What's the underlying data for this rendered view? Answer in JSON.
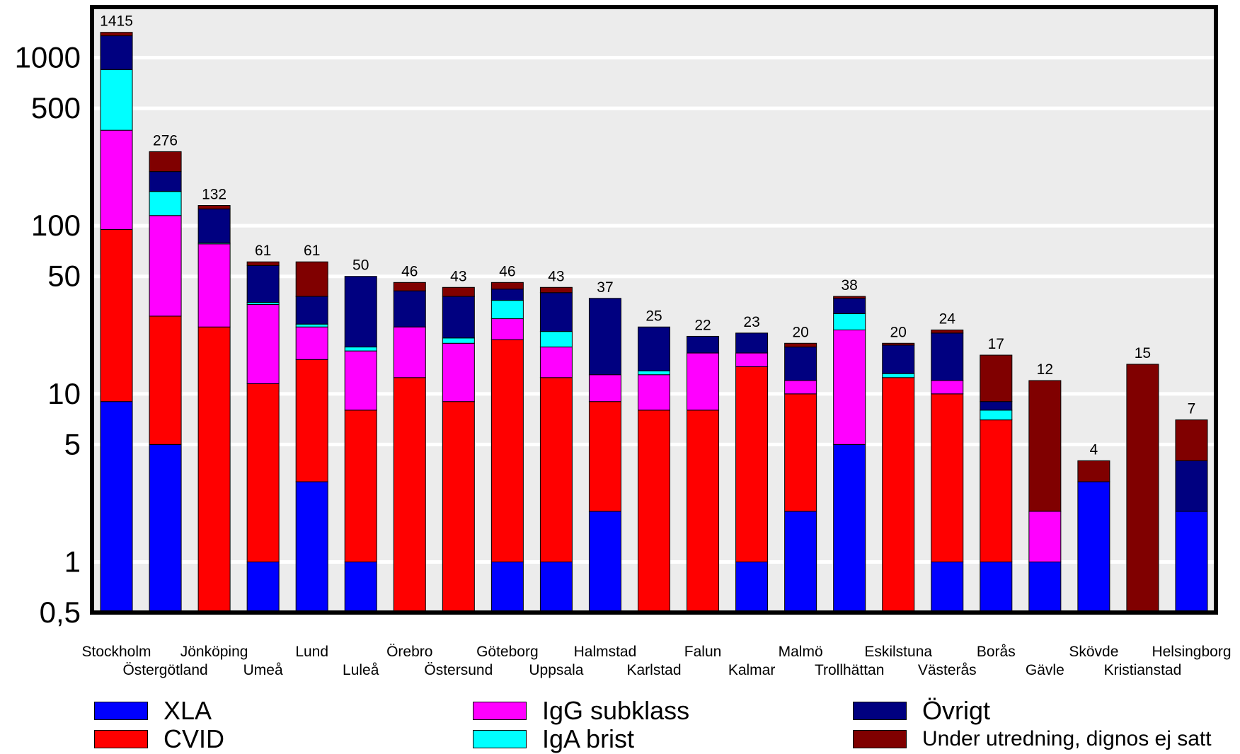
{
  "chart_data": {
    "type": "bar",
    "stacked": true,
    "yscale": "log",
    "ylim": [
      0.5,
      2000
    ],
    "yticks": [
      {
        "value": 0.5,
        "label": "0,5"
      },
      {
        "value": 1,
        "label": "1"
      },
      {
        "value": 5,
        "label": "5"
      },
      {
        "value": 10,
        "label": "10"
      },
      {
        "value": 50,
        "label": "50"
      },
      {
        "value": 100,
        "label": "100"
      },
      {
        "value": 500,
        "label": "500"
      },
      {
        "value": 1000,
        "label": "1000"
      }
    ],
    "gridlines": [
      1,
      5,
      10,
      50,
      100,
      500,
      1000
    ],
    "plot_background": "#ececec",
    "categories": [
      "Stockholm",
      "Östergötland",
      "Jönköping",
      "Umeå",
      "Lund",
      "Luleå",
      "Örebro",
      "Östersund",
      "Göteborg",
      "Uppsala",
      "Halmstad",
      "Karlstad",
      "Falun",
      "Kalmar",
      "Malmö",
      "Trollhättan",
      "Eskilstuna",
      "Västerås",
      "Borås",
      "Gävle",
      "Skövde",
      "Kristianstad",
      "Helsingborg"
    ],
    "totals": [
      "1415",
      "276",
      "132",
      "61",
      "61",
      "50",
      "46",
      "43",
      "46",
      "43",
      "37",
      "25",
      "22",
      "23",
      "20",
      "38",
      "20",
      "24",
      "17",
      "12",
      "4",
      "15",
      "7"
    ],
    "cumulative_tops": [
      [
        9,
        95,
        370,
        850,
        1350,
        1415
      ],
      [
        5,
        29,
        115,
        160,
        210,
        276
      ],
      [
        0.5,
        25,
        78,
        79,
        126,
        132
      ],
      [
        1,
        11.5,
        34,
        35,
        58,
        61
      ],
      [
        3,
        16,
        25,
        26,
        38,
        61
      ],
      [
        1,
        8,
        18,
        19,
        50,
        50
      ],
      [
        0.5,
        12.5,
        25,
        25,
        41,
        46
      ],
      [
        0.5,
        9,
        20,
        21.5,
        38,
        43
      ],
      [
        1,
        21,
        28,
        36,
        42,
        46
      ],
      [
        1,
        12.5,
        19,
        23.5,
        40,
        43
      ],
      [
        2,
        9,
        13,
        13,
        37,
        37
      ],
      [
        0.5,
        8,
        13,
        13.7,
        25,
        25
      ],
      [
        0.5,
        8,
        17.5,
        17.5,
        22,
        22
      ],
      [
        1,
        14.5,
        17.5,
        17.5,
        23,
        23
      ],
      [
        2,
        10,
        12,
        12,
        19,
        20
      ],
      [
        5,
        5,
        24,
        30,
        37,
        38
      ],
      [
        0.5,
        12.5,
        12.5,
        13.2,
        19.5,
        20
      ],
      [
        1,
        10,
        12,
        12,
        23,
        24
      ],
      [
        1,
        7,
        7,
        8,
        9,
        17
      ],
      [
        1,
        1,
        2,
        2,
        2,
        12
      ],
      [
        3,
        3,
        3,
        3,
        3,
        4
      ],
      [
        0.5,
        0.5,
        0.5,
        0.5,
        0.5,
        15
      ],
      [
        2,
        2,
        2,
        2,
        4,
        7
      ]
    ],
    "series": [
      {
        "name": "XLA",
        "color": "#0000ff"
      },
      {
        "name": "CVID",
        "color": "#ff0000"
      },
      {
        "name": "IgG subklass",
        "color": "#ff00ff"
      },
      {
        "name": "IgA brist",
        "color": "#00ffff"
      },
      {
        "name": "Övrigt",
        "color": "#000080"
      },
      {
        "name": "Under utredning, dignos ej satt",
        "color": "#800000"
      }
    ],
    "legend_placement": "bottom"
  }
}
